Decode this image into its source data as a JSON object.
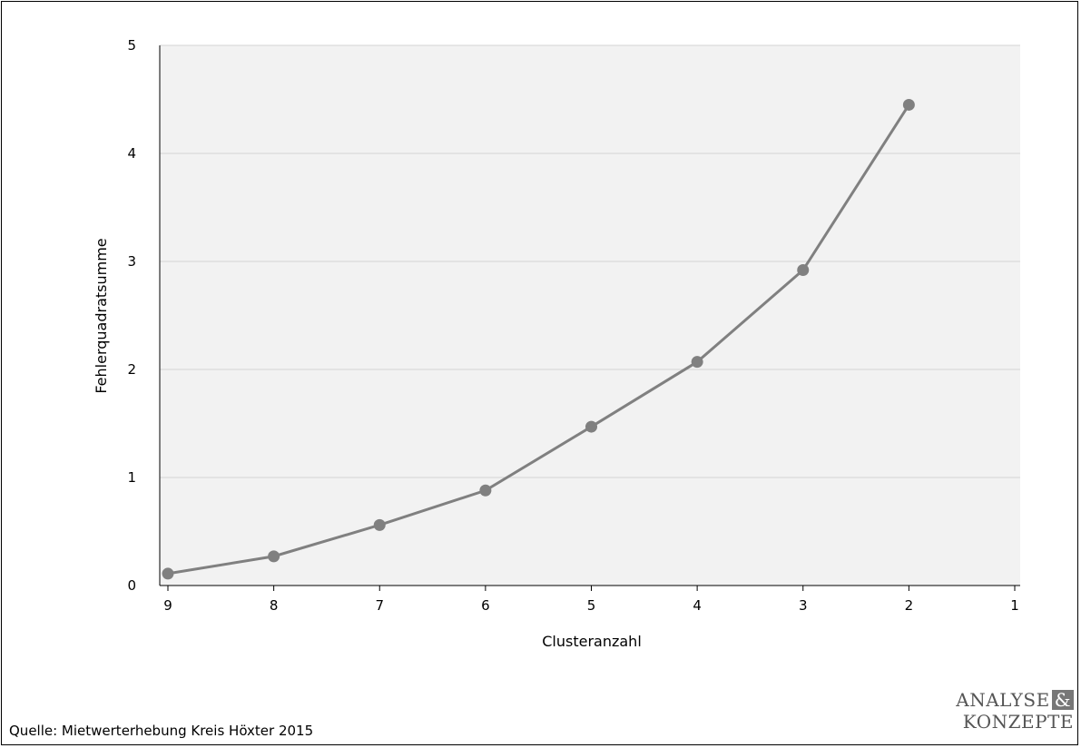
{
  "chart_data": {
    "type": "line",
    "xlabel": "Clusteranzahl",
    "ylabel": "Fehlerquadratsumme",
    "x_ticks": [
      "9",
      "8",
      "7",
      "6",
      "5",
      "4",
      "3",
      "2",
      "1"
    ],
    "y_ticks": [
      "0",
      "1",
      "2",
      "3",
      "4",
      "5"
    ],
    "xlim": [
      9,
      1
    ],
    "ylim": [
      0,
      5
    ],
    "x_reversed": true,
    "grid": "horizontal",
    "plot_background": "#f2f2f2",
    "series": [
      {
        "color": "#808080",
        "points": [
          {
            "x": 9,
            "y": 0.11
          },
          {
            "x": 8,
            "y": 0.27
          },
          {
            "x": 7,
            "y": 0.56
          },
          {
            "x": 6,
            "y": 0.88
          },
          {
            "x": 5,
            "y": 1.47
          },
          {
            "x": 4,
            "y": 2.07
          },
          {
            "x": 3,
            "y": 2.92
          },
          {
            "x": 2,
            "y": 4.45
          }
        ]
      }
    ]
  },
  "source_note": "Quelle: Mietwerterhebung Kreis Höxter 2015",
  "logo": {
    "line1": "ANALYSE",
    "amp": "&",
    "line2": "KONZEPTE"
  }
}
